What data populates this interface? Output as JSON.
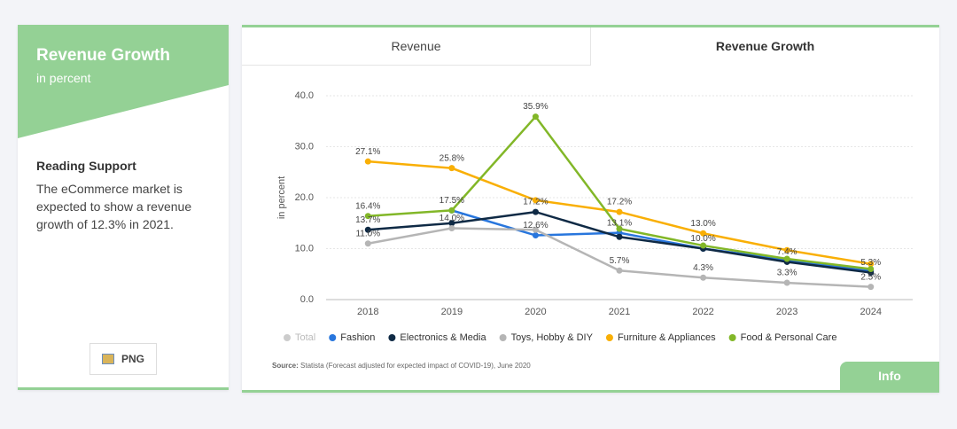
{
  "sidebar": {
    "title": "Revenue Growth",
    "subtitle": "in percent",
    "heading": "Reading Support",
    "text": "The eCommerce market is expected to show a revenue growth of 12.3% in 2021.",
    "button": "PNG"
  },
  "tabs": [
    "Revenue",
    "Revenue Growth"
  ],
  "source_label": "Source:",
  "source_text": "Statista (Forecast adjusted for expected impact of COVID-19), June 2020",
  "info_button": "Info",
  "chart_data": {
    "type": "line",
    "ylabel": "in percent",
    "categories": [
      "2018",
      "2019",
      "2020",
      "2021",
      "2022",
      "2023",
      "2024"
    ],
    "ylim": [
      0,
      40
    ],
    "yticks": [
      {
        "value": 0,
        "label": "0.0"
      },
      {
        "value": 10,
        "label": "10.0"
      },
      {
        "value": 20,
        "label": "20.0"
      },
      {
        "value": 30,
        "label": "30.0"
      },
      {
        "value": 40,
        "label": "40.0"
      }
    ],
    "grid": true,
    "series": [
      {
        "name": "Total",
        "color": "#cccccc",
        "hidden": true,
        "values": [
          null,
          null,
          null,
          null,
          null,
          null,
          null
        ]
      },
      {
        "name": "Fashion",
        "color": "#2876dd",
        "values": [
          null,
          17.5,
          12.6,
          13.1,
          10.0,
          7.8,
          5.6
        ],
        "value_labels": [
          null,
          null,
          "12.6%",
          "13.1%",
          null,
          null,
          null
        ]
      },
      {
        "name": "Electronics & Media",
        "color": "#0f2a45",
        "values": [
          13.7,
          15.0,
          17.2,
          12.3,
          10.0,
          7.4,
          5.3
        ],
        "value_labels": [
          "13.7%",
          null,
          "17.2%",
          null,
          "10.0%",
          "7.4%",
          "5.3%"
        ]
      },
      {
        "name": "Toys, Hobby & DIY",
        "color": "#b5b5b5",
        "values": [
          11.0,
          14.0,
          13.7,
          5.7,
          4.3,
          3.3,
          2.5
        ],
        "value_labels": [
          "11.0%",
          "14.0%",
          null,
          "5.7%",
          "4.3%",
          "3.3%",
          "2.5%"
        ]
      },
      {
        "name": "Furniture & Appliances",
        "color": "#f9af05",
        "values": [
          27.1,
          25.8,
          19.5,
          17.2,
          13.0,
          9.7,
          7.0
        ],
        "value_labels": [
          "27.1%",
          "25.8%",
          null,
          "17.2%",
          "13.0%",
          null,
          null
        ]
      },
      {
        "name": "Food & Personal Care",
        "color": "#82b728",
        "values": [
          16.4,
          17.5,
          35.9,
          13.9,
          10.6,
          8.0,
          6.0
        ],
        "value_labels": [
          "16.4%",
          "17.5%",
          "35.9%",
          null,
          null,
          null,
          null
        ]
      }
    ]
  }
}
